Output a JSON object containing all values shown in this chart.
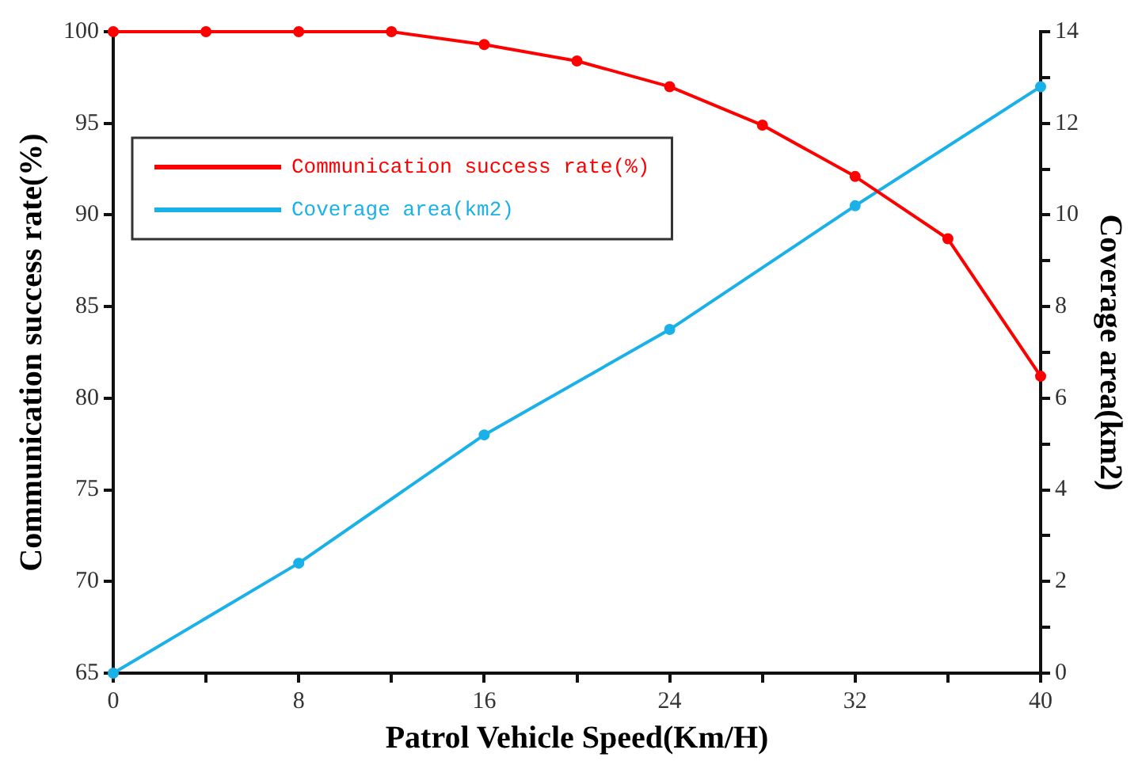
{
  "chart_data": {
    "type": "line",
    "xlabel": "Patrol Vehicle Speed(Km/H)",
    "ylabel": "Communication success rate(%)",
    "y2label": "Coverage area(km2)",
    "xlim": [
      0,
      40
    ],
    "xticks": [
      0,
      {
        "value": 4,
        "label": null
      },
      8,
      {
        "value": 12,
        "label": null
      },
      16,
      {
        "value": 20,
        "label": null
      },
      24,
      {
        "value": 28,
        "label": null
      },
      32,
      {
        "value": 36,
        "label": null
      },
      40
    ],
    "ylim": [
      65,
      100
    ],
    "yticks": [
      65,
      70,
      75,
      80,
      85,
      90,
      95,
      100
    ],
    "y2lim": [
      0,
      14
    ],
    "y2ticks": [
      0,
      {
        "value": 1,
        "label": null
      },
      2,
      {
        "value": 3,
        "label": null
      },
      4,
      {
        "value": 5,
        "label": null
      },
      6,
      {
        "value": 7,
        "label": null
      },
      8,
      {
        "value": 9,
        "label": null
      },
      10,
      {
        "value": 11,
        "label": null
      },
      12,
      {
        "value": 13,
        "label": null
      },
      14
    ],
    "grid": false,
    "legend": "top left",
    "marker": "circle",
    "line_style": "solid",
    "series": [
      {
        "name": "Communication success rate(%)",
        "color": "#ff0000",
        "x": [
          0,
          4,
          8,
          12,
          16,
          20,
          24,
          28,
          32,
          36,
          40
        ],
        "values": [
          100,
          100,
          100,
          100,
          99.3,
          98.4,
          97.0,
          94.9,
          92.1,
          88.7,
          81.2
        ]
      },
      {
        "name": "Coverage area(km2)",
        "color": "#1ab0e8",
        "axis": "y2",
        "x": [
          0,
          8,
          16,
          24,
          32,
          40
        ],
        "values": [
          0,
          2.4,
          5.2,
          7.5,
          10.2,
          12.8
        ]
      }
    ]
  }
}
